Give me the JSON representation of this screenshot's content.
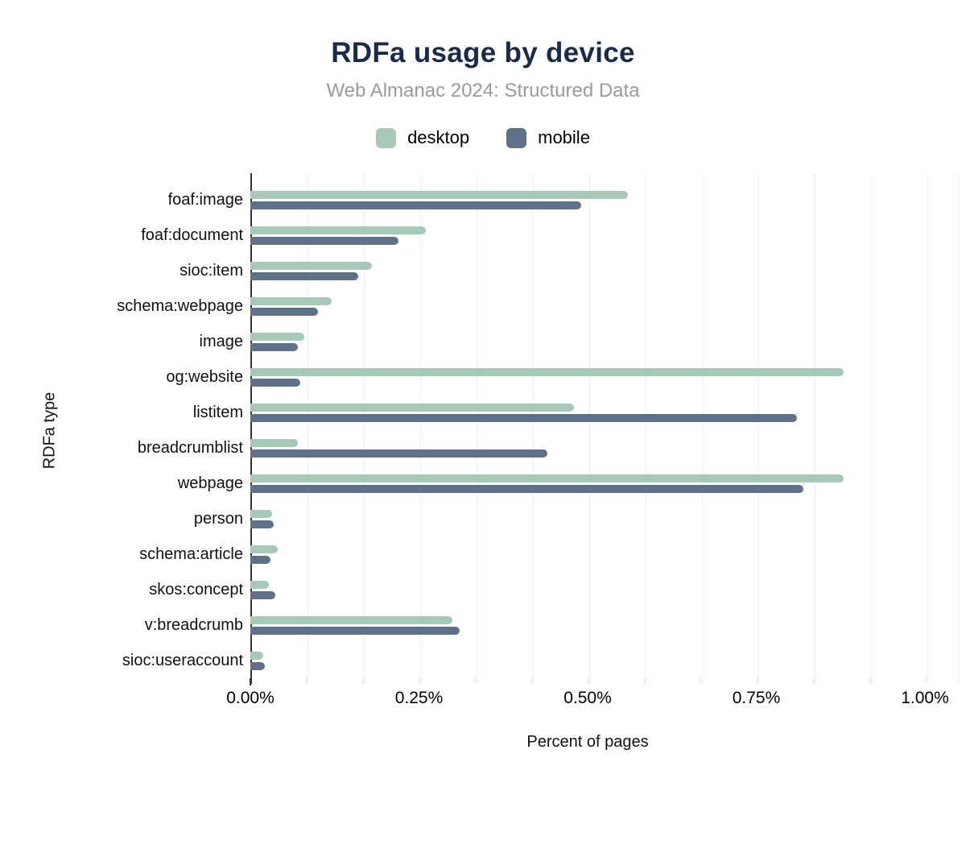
{
  "page": {
    "background": "#ffffff"
  },
  "colors": {
    "title": "#1a2b49",
    "subtitle": "#9b9b9b",
    "axis_line": "#333333",
    "gridline": "#ededed",
    "text": "#111111"
  },
  "chart_data": {
    "type": "bar",
    "orientation": "horizontal",
    "title": "RDFa usage by device",
    "subtitle": "Web Almanac 2024: Structured Data",
    "xlabel": "Percent of pages",
    "ylabel": "RDFa type",
    "legend_position": "top",
    "grid": "vertical light gridlines every 0.0833%",
    "xlim": [
      0,
      1.05
    ],
    "x_ticks": [
      "0.00%",
      "0.25%",
      "0.50%",
      "0.75%",
      "1.00%"
    ],
    "x_tick_values": [
      0,
      0.25,
      0.5,
      0.75,
      1.0
    ],
    "categories": [
      "foaf:image",
      "foaf:document",
      "sioc:item",
      "schema:webpage",
      "image",
      "og:website",
      "listitem",
      "breadcrumblist",
      "webpage",
      "person",
      "schema:article",
      "skos:concept",
      "v:breadcrumb",
      "sioc:useraccount"
    ],
    "series": [
      {
        "name": "desktop",
        "color": "#a7c9b7",
        "values": [
          0.56,
          0.26,
          0.18,
          0.12,
          0.08,
          0.88,
          0.48,
          0.07,
          0.88,
          0.032,
          0.04,
          0.027,
          0.3,
          0.019
        ]
      },
      {
        "name": "mobile",
        "color": "#5f7188",
        "values": [
          0.49,
          0.22,
          0.16,
          0.1,
          0.07,
          0.074,
          0.81,
          0.44,
          0.82,
          0.035,
          0.03,
          0.037,
          0.31,
          0.021
        ]
      }
    ]
  }
}
